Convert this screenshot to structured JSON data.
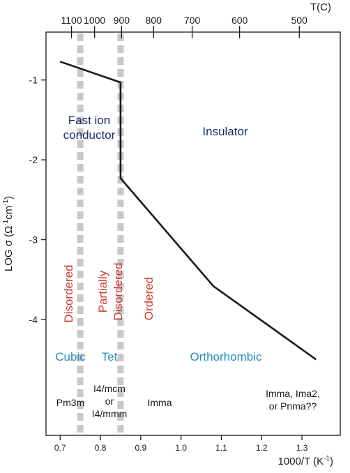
{
  "chart_data": {
    "type": "line",
    "title": "",
    "xlabel": "1000/T (K",
    "xlabel_sup": "-1",
    "xlabel_close": ")",
    "ylabel": "LOG σ (Ω",
    "ylabel_sup1": "-1",
    "ylabel_mid": "cm",
    "ylabel_sup2": "-1",
    "ylabel_close": ")",
    "top_axis_label": "T(C)",
    "xlim": [
      0.665,
      1.395
    ],
    "ylim": [
      -5.45,
      -0.4
    ],
    "x_ticks": [
      {
        "value": 0.7,
        "label": "0.7"
      },
      {
        "value": 0.8,
        "label": "0.8"
      },
      {
        "value": 0.9,
        "label": "0.9"
      },
      {
        "value": 1.0,
        "label": "1.0"
      },
      {
        "value": 1.1,
        "label": "1.1"
      },
      {
        "value": 1.2,
        "label": "1.2"
      },
      {
        "value": 1.3,
        "label": "1.3"
      }
    ],
    "y_ticks": [
      {
        "value": -1,
        "label": "-1"
      },
      {
        "value": -2,
        "label": "-2"
      },
      {
        "value": -3,
        "label": "-3"
      },
      {
        "value": -4,
        "label": "-4"
      }
    ],
    "top_ticks": [
      {
        "celsius": 1100,
        "label": "1100"
      },
      {
        "celsius": 1000,
        "label": "1000"
      },
      {
        "celsius": 900,
        "label": "900"
      },
      {
        "celsius": 800,
        "label": "800"
      },
      {
        "celsius": 700,
        "label": "700"
      },
      {
        "celsius": 600,
        "label": "600"
      },
      {
        "celsius": 500,
        "label": "500"
      }
    ],
    "series": [
      {
        "points": [
          {
            "x": 0.7,
            "y": -0.77
          },
          {
            "x": 0.85,
            "y": -1.03
          },
          {
            "x": 0.85,
            "y": -2.23
          },
          {
            "x": 1.08,
            "y": -3.58
          },
          {
            "x": 1.335,
            "y": -4.5
          }
        ]
      }
    ],
    "phase_boundaries": [
      0.75,
      0.85
    ],
    "annotations": {
      "fast_ion_line1": "Fast ion",
      "fast_ion_line2": "conductor",
      "insulator": "Insulator",
      "disordered": "Disordered",
      "partially_line1": "Partially",
      "partially_line2": "Disordered",
      "ordered": "Ordered",
      "cubic": "Cubic",
      "tet": "Tet",
      "orthorhombic": "Orthorhombic",
      "pm3m": "Pm3m",
      "i4_line1": "I4/mcm",
      "i4_line2": "or",
      "i4_line3": "I4/mmm",
      "imma": "Imma",
      "space_groups_line1": "Imma, Ima2,",
      "space_groups_line2": "or Pnma??"
    },
    "colors": {
      "data_line": "#1a1a1a",
      "axis": "#1a1a1a",
      "phase_boundary": "#c8c8c8",
      "conduction_regime_text": "#1f2a6b",
      "ordering_text": "#cc3a2e",
      "crystal_system_text": "#2a8cbf",
      "space_group_text": "#1a1a1a"
    }
  }
}
